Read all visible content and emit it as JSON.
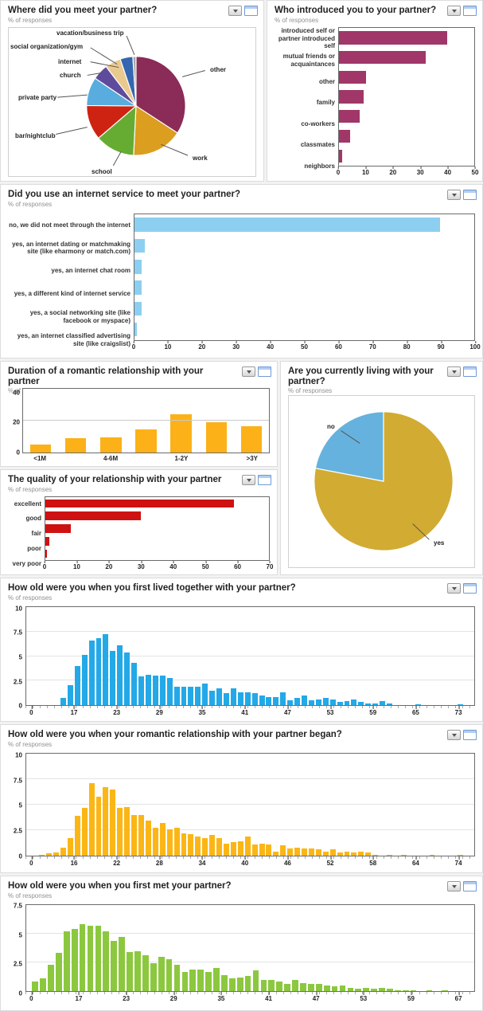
{
  "labels": {
    "pct_responses": "% of responses"
  },
  "icons": {
    "collapse": "chevron-down-icon",
    "maximize": "maximize-window-icon"
  },
  "chart_data": [
    {
      "id": "where_met",
      "type": "pie",
      "title": "Where did you meet your partner?",
      "slices": [
        {
          "label": "other",
          "pct": 33,
          "color": "#8B2B57"
        },
        {
          "label": "work",
          "pct": 16,
          "color": "#DB9E1F"
        },
        {
          "label": "school",
          "pct": 12.5,
          "color": "#66AC32"
        },
        {
          "label": "bar/nightclub",
          "pct": 11,
          "color": "#CE2312"
        },
        {
          "label": "private party",
          "pct": 9,
          "color": "#58ACDE"
        },
        {
          "label": "church",
          "pct": 5,
          "color": "#5F4B9B"
        },
        {
          "label": "internet",
          "pct": 5,
          "color": "#EAC98F"
        },
        {
          "label": "social organization/gym",
          "pct": 4,
          "color": "#3566B0"
        },
        {
          "label": "vacation/business trip",
          "pct": 1,
          "color": "#A8A8A8"
        }
      ]
    },
    {
      "id": "who_introduced",
      "type": "hbar",
      "title": "Who introduced you to your partner?",
      "categories": [
        "introduced self or partner introduced self",
        "mutual friends or acquaintances",
        "other",
        "family",
        "co-workers",
        "classmates",
        "neighbors"
      ],
      "values": [
        40,
        32,
        10,
        9,
        7.5,
        4,
        1.2
      ],
      "color": "#A03768",
      "xlim": [
        0,
        50
      ],
      "x_ticks": [
        0,
        10,
        20,
        30,
        40,
        50
      ]
    },
    {
      "id": "internet_service",
      "type": "hbar",
      "title": "Did you use an internet service to meet your partner?",
      "categories": [
        "no, we did not meet through the internet",
        "yes, an internet dating or matchmaking site (like eharmony or match.com)",
        "yes, an internet chat room",
        "yes, a different kind of internet service",
        "yes, a social networking site (like facebook or myspace)",
        "yes, an internet classified advertising site (like craigslist)"
      ],
      "values": [
        90,
        3,
        2,
        2,
        2,
        0.7
      ],
      "color": "#8DCFF0",
      "xlim": [
        0,
        100
      ],
      "x_ticks": [
        0,
        10,
        20,
        30,
        40,
        50,
        60,
        70,
        80,
        90,
        100
      ]
    },
    {
      "id": "duration",
      "type": "vbar",
      "title": "Duration of a romantic relationship with your partner",
      "values": [
        5,
        9,
        9.5,
        14.5,
        24,
        19,
        16.5
      ],
      "x_labels": [
        {
          "index": 0,
          "label": "<1M"
        },
        {
          "index": 2,
          "label": "4-6M"
        },
        {
          "index": 4,
          "label": "1-2Y"
        },
        {
          "index": 6,
          "label": ">3Y"
        }
      ],
      "color": "#FBB117",
      "ylim": [
        0,
        40
      ],
      "y_ticks": [
        0,
        20,
        40
      ]
    },
    {
      "id": "living_with",
      "type": "pie",
      "title": "Are you currently living with your partner?",
      "slices": [
        {
          "label": "yes",
          "pct": 78,
          "color": "#D2AB32"
        },
        {
          "label": "no",
          "pct": 22,
          "color": "#66B2DE"
        }
      ]
    },
    {
      "id": "quality",
      "type": "hbar",
      "title": "The quality of your relationship with your partner",
      "categories": [
        "excellent",
        "good",
        "fair",
        "poor",
        "very poor"
      ],
      "values": [
        59,
        30,
        8,
        1.3,
        0.6
      ],
      "color": "#CE1212",
      "xlim": [
        0,
        70
      ],
      "x_ticks": [
        0,
        10,
        20,
        30,
        40,
        50,
        60,
        70
      ]
    },
    {
      "id": "age_lived_together",
      "type": "histogram",
      "title": "How old were you when you first lived together with your partner?",
      "color": "#23A9E8",
      "ylim": [
        0,
        10
      ],
      "y_ticks": [
        0,
        2.5,
        5,
        7.5,
        10
      ],
      "x_ticks": [
        0,
        17,
        23,
        29,
        35,
        41,
        47,
        53,
        59,
        65,
        73
      ],
      "first_age": 15,
      "values": [
        0.7,
        2.0,
        4.0,
        5.1,
        6.6,
        6.8,
        7.2,
        5.5,
        6.1,
        5.4,
        4.3,
        2.9,
        3.1,
        3.0,
        3.0,
        2.8,
        1.9,
        1.9,
        1.9,
        1.9,
        2.2,
        1.5,
        1.7,
        1.2,
        1.7,
        1.3,
        1.3,
        1.2,
        1.0,
        0.8,
        0.8,
        1.3,
        0.5,
        0.7,
        1.0,
        0.5,
        0.6,
        0.7,
        0.6,
        0.3,
        0.4,
        0.6,
        0.3,
        0.2,
        0.2,
        0.4,
        0.2
      ],
      "tail": [
        {
          "age": 65,
          "pct": 0.1
        },
        {
          "age": 71,
          "pct": 0.1
        }
      ]
    },
    {
      "id": "age_relationship_began",
      "type": "histogram",
      "title": "How old were you when your romantic relationship with your partner began?",
      "color": "#FBB616",
      "ylim": [
        0,
        10
      ],
      "y_ticks": [
        0,
        2.5,
        5,
        7.5,
        10
      ],
      "x_ticks": [
        0,
        16,
        22,
        28,
        34,
        40,
        46,
        52,
        58,
        64,
        74
      ],
      "first_age": 11,
      "values": [
        0.1,
        0.2,
        0.3,
        0.8,
        1.7,
        3.9,
        4.7,
        7.1,
        5.8,
        6.7,
        6.5,
        4.7,
        4.8,
        4.0,
        4.0,
        3.4,
        2.7,
        3.2,
        2.6,
        2.7,
        2.2,
        2.1,
        1.9,
        1.7,
        2.0,
        1.7,
        1.2,
        1.3,
        1.4,
        1.9,
        1.1,
        1.2,
        1.1,
        0.4,
        1.0,
        0.7,
        0.8,
        0.7,
        0.7,
        0.6,
        0.4,
        0.6,
        0.3,
        0.4,
        0.3,
        0.4,
        0.3,
        0.1
      ],
      "tail": [
        {
          "age": 60,
          "pct": 0.1
        },
        {
          "age": 62,
          "pct": 0.1
        },
        {
          "age": 66,
          "pct": 0.1
        },
        {
          "age": 70,
          "pct": 0.1
        }
      ]
    },
    {
      "id": "age_first_met",
      "type": "histogram",
      "title": "How old were you when you first met your partner?",
      "color": "#8CC83F",
      "ylim": [
        0,
        7.5
      ],
      "y_ticks": [
        0,
        2.5,
        5,
        7.5
      ],
      "x_ticks": [
        0,
        17,
        23,
        29,
        35,
        41,
        47,
        53,
        59,
        67
      ],
      "first_age": 11,
      "values": [
        0.8,
        1.1,
        2.3,
        3.3,
        5.2,
        5.4,
        5.8,
        5.7,
        5.7,
        5.2,
        4.4,
        4.7,
        3.4,
        3.5,
        3.1,
        2.4,
        3.0,
        2.8,
        2.3,
        1.7,
        1.9,
        1.9,
        1.7,
        2.0,
        1.4,
        1.1,
        1.2,
        1.3,
        1.8,
        1.0,
        1.0,
        0.8,
        0.6,
        1.0,
        0.7,
        0.6,
        0.6,
        0.5,
        0.4,
        0.5,
        0.3,
        0.2,
        0.3,
        0.2,
        0.3,
        0.2,
        0.1,
        0.1,
        0.1
      ],
      "tail": [
        {
          "age": 61,
          "pct": 0.1
        },
        {
          "age": 63,
          "pct": 0.1
        }
      ]
    }
  ]
}
